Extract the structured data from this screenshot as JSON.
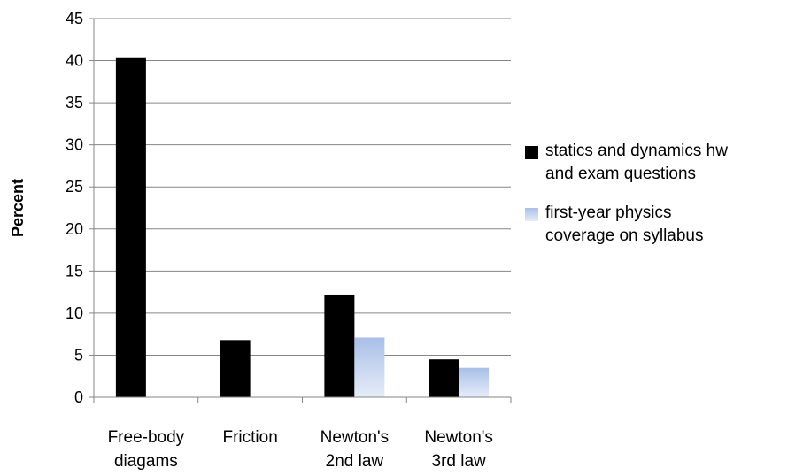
{
  "chart_data": {
    "type": "bar",
    "title": "",
    "xlabel": "",
    "ylabel": "Percent",
    "ylim": [
      0,
      45
    ],
    "yticks": [
      0,
      5,
      10,
      15,
      20,
      25,
      30,
      35,
      40,
      45
    ],
    "grid": true,
    "legend_position": "right",
    "categories": [
      [
        "Free-body",
        "diagams"
      ],
      [
        "Friction"
      ],
      [
        "Newton's",
        "2nd law"
      ],
      [
        "Newton's",
        "3rd law"
      ]
    ],
    "series": [
      {
        "name": "statics and dynamics hw and exam questions",
        "legend_lines": [
          "statics and dynamics hw",
          "and exam questions"
        ],
        "color": "#000000",
        "values": [
          40.4,
          6.8,
          12.2,
          4.5
        ]
      },
      {
        "name": "first-year physics coverage on syllabus",
        "legend_lines": [
          "first-year physics",
          "coverage on syllabus"
        ],
        "color": "#a9bfe8",
        "values": [
          null,
          null,
          7.1,
          3.5
        ]
      }
    ]
  }
}
